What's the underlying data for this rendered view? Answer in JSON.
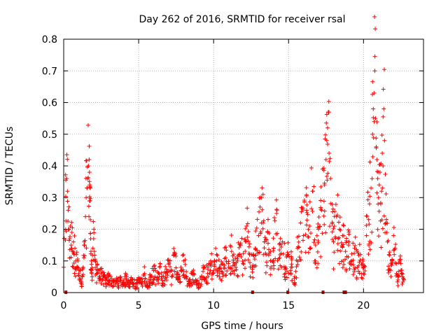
{
  "chart_data": {
    "type": "scatter",
    "title": "Day 262 of 2016, SRMTID for receiver rsal",
    "xlabel": "GPS time / hours",
    "ylabel": "SRMTID / TECUs",
    "xlim": [
      0,
      24
    ],
    "ylim": [
      0,
      0.8
    ],
    "xticks": [
      "0",
      "5",
      "10",
      "15",
      "20"
    ],
    "yticks": [
      "0",
      "0.1",
      "0.2",
      "0.3",
      "0.4",
      "0.5",
      "0.6",
      "0.7",
      "0.8"
    ],
    "grid": true,
    "marker": "plus",
    "color": "#ff0000",
    "series": [
      {
        "x": [
          0.0,
          0.2,
          0.25,
          0.3,
          0.35,
          0.4,
          0.45,
          0.5,
          0.55,
          0.6,
          0.65,
          0.7,
          0.75,
          0.8,
          0.85,
          0.9,
          0.95,
          1.0,
          1.05,
          1.1,
          1.15,
          1.2,
          1.25,
          1.3,
          1.35,
          1.4,
          1.45,
          1.5,
          1.55,
          1.6,
          1.65,
          1.7,
          1.72,
          1.74,
          1.76,
          1.78,
          1.8,
          1.82,
          1.84,
          1.86,
          1.9,
          1.95,
          2.0,
          2.05,
          2.1,
          2.15,
          2.2,
          2.25,
          2.3,
          2.4,
          2.5,
          2.6,
          2.7,
          2.8,
          2.9,
          3.0,
          3.2,
          3.4,
          3.6,
          3.8,
          4.0,
          4.2,
          4.4,
          4.6,
          4.8,
          5.0,
          5.2,
          5.4,
          5.6,
          5.8,
          6.0,
          6.2,
          6.4,
          6.6,
          6.8,
          7.0,
          7.2,
          7.4,
          7.6,
          7.8,
          8.0,
          8.2,
          8.4,
          8.6,
          8.8,
          9.0,
          9.2,
          9.4,
          9.6,
          9.8,
          10.0,
          10.2,
          10.4,
          10.6,
          10.8,
          11.0,
          11.2,
          11.4,
          11.6,
          11.8,
          12.0,
          12.2,
          12.4,
          12.6,
          12.8,
          13.0,
          13.1,
          13.2,
          13.3,
          13.4,
          13.5,
          13.6,
          13.8,
          14.0,
          14.2,
          14.4,
          14.6,
          14.8,
          15.0,
          15.2,
          15.4,
          15.6,
          15.8,
          16.0,
          16.2,
          16.4,
          16.6,
          16.8,
          17.0,
          17.2,
          17.4,
          17.5,
          17.55,
          17.6,
          17.65,
          17.7,
          17.8,
          18.0,
          18.2,
          18.4,
          18.6,
          18.8,
          19.0,
          19.2,
          19.4,
          19.6,
          19.8,
          20.0,
          20.2,
          20.4,
          20.5,
          20.6,
          20.65,
          20.7,
          20.75,
          20.8,
          20.85,
          20.9,
          20.95,
          21.0,
          21.05,
          21.1,
          21.15,
          21.2,
          21.25,
          21.3,
          21.35,
          21.4,
          21.5,
          21.6,
          21.7,
          21.8,
          21.9,
          22.0,
          22.1,
          22.2,
          22.3,
          22.4,
          22.5,
          22.6,
          22.7
        ],
        "y": [
          0.08,
          0.36,
          0.32,
          0.26,
          0.2,
          0.17,
          0.21,
          0.15,
          0.19,
          0.13,
          0.16,
          0.12,
          0.14,
          0.1,
          0.12,
          0.08,
          0.1,
          0.06,
          0.04,
          0.07,
          0.03,
          0.02,
          0.05,
          0.08,
          0.11,
          0.15,
          0.24,
          0.3,
          0.33,
          0.36,
          0.4,
          0.42,
          0.38,
          0.34,
          0.29,
          0.23,
          0.17,
          0.13,
          0.1,
          0.07,
          0.05,
          0.14,
          0.17,
          0.13,
          0.1,
          0.08,
          0.06,
          0.09,
          0.07,
          0.05,
          0.06,
          0.04,
          0.05,
          0.03,
          0.04,
          0.05,
          0.03,
          0.04,
          0.03,
          0.04,
          0.03,
          0.05,
          0.03,
          0.04,
          0.02,
          0.04,
          0.03,
          0.06,
          0.02,
          0.05,
          0.07,
          0.04,
          0.08,
          0.03,
          0.06,
          0.09,
          0.05,
          0.12,
          0.04,
          0.07,
          0.1,
          0.05,
          0.03,
          0.06,
          0.04,
          0.02,
          0.05,
          0.08,
          0.06,
          0.1,
          0.07,
          0.12,
          0.06,
          0.09,
          0.11,
          0.08,
          0.13,
          0.07,
          0.1,
          0.15,
          0.09,
          0.21,
          0.12,
          0.08,
          0.14,
          0.18,
          0.27,
          0.3,
          0.22,
          0.16,
          0.12,
          0.19,
          0.1,
          0.14,
          0.25,
          0.11,
          0.16,
          0.08,
          0.12,
          0.09,
          0.03,
          0.14,
          0.22,
          0.18,
          0.26,
          0.21,
          0.32,
          0.15,
          0.2,
          0.26,
          0.34,
          0.42,
          0.48,
          0.52,
          0.57,
          0.44,
          0.36,
          0.16,
          0.24,
          0.2,
          0.18,
          0.13,
          0.15,
          0.1,
          0.14,
          0.08,
          0.12,
          0.06,
          0.18,
          0.28,
          0.33,
          0.5,
          0.58,
          0.63,
          0.7,
          0.55,
          0.46,
          0.42,
          0.36,
          0.3,
          0.34,
          0.38,
          0.28,
          0.32,
          0.44,
          0.4,
          0.58,
          0.48,
          0.22,
          0.16,
          0.12,
          0.07,
          0.1,
          0.18,
          0.14,
          0.06,
          0.04,
          0.1,
          0.07,
          0.05,
          0.04
        ]
      },
      {
        "x": [
          0.15,
          12.6,
          14.95,
          17.3,
          18.7,
          18.8
        ],
        "y": [
          0,
          0,
          0,
          0,
          0,
          0
        ]
      }
    ]
  }
}
